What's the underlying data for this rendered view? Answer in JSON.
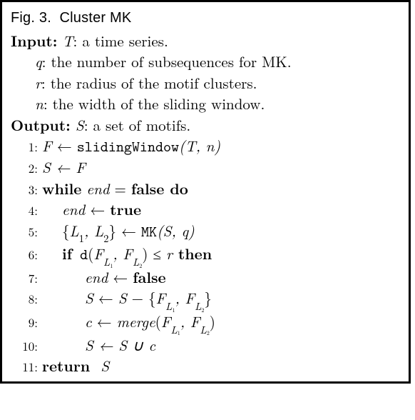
{
  "caption_prefix": "Fig. 3.",
  "caption_title": "Cluster MK",
  "input_label": "Input:",
  "output_label": "Output:",
  "input_items": [
    {
      "var": "T",
      "desc": ": a time series."
    },
    {
      "var": "q",
      "desc": ": the number of subsequences for MK."
    },
    {
      "var": "r",
      "desc": ": the radius of the motif clusters."
    },
    {
      "var": "n",
      "desc": ": the width of the sliding window."
    }
  ],
  "output_item": {
    "var": "S",
    "desc": ": a set of motifs."
  },
  "lines": {
    "l1_lhs": "F",
    "l1_arrow": " ← ",
    "l1_fn": "slidingWindow",
    "l1_args": "(T, n)",
    "l2": "S ← F",
    "l3_while": "while",
    "l3_cond_var": "end",
    "l3_eq": " = ",
    "l3_false": "false",
    "l3_do": " do",
    "l4_var": "end",
    "l4_arrow": " ← ",
    "l4_true": "true",
    "l5_lhs_open": "{",
    "l5_L1": "L",
    "l5_sub1": "1",
    "l5_comma": ", ",
    "l5_L2": "L",
    "l5_sub2": "2",
    "l5_close": "}",
    "l5_arrow": " ← ",
    "l5_fn": "MK",
    "l5_args": "(S, q)",
    "l6_if": "if",
    "l6_d": " d",
    "l6_open": "(",
    "l6_F1": "F",
    "l6_Lsub1": "L",
    "l6_subsub1": "1",
    "l6_comma": ", ",
    "l6_F2": "F",
    "l6_Lsub2": "L",
    "l6_subsub2": "2",
    "l6_close": ")",
    "l6_leq": " ≤ ",
    "l6_r": "r",
    "l6_then": " then",
    "l7_var": "end",
    "l7_arrow": " ← ",
    "l7_false": "false",
    "l8_S": "S",
    "l8_arrow": " ← ",
    "l8_S2": "S",
    "l8_minus": " − {",
    "l8_F1": "F",
    "l8_L1": "L",
    "l8_s1": "1",
    "l8_comma": ", ",
    "l8_F2": "F",
    "l8_L2": "L",
    "l8_s2": "2",
    "l8_close": "}",
    "l9_c": "c",
    "l9_arrow": " ← ",
    "l9_merge": "merge",
    "l9_open": "(",
    "l9_F1": "F",
    "l9_L1": "L",
    "l9_s1": "1",
    "l9_comma": ", ",
    "l9_F2": "F",
    "l9_L2": "L",
    "l9_s2": "2",
    "l9_close": ")",
    "l10": "S ← S ∪ c",
    "l11_return": "return",
    "l11_S": "  S"
  },
  "linenos": [
    "1:",
    "2:",
    "3:",
    "4:",
    "5:",
    "6:",
    "7:",
    "8:",
    "9:",
    "10:",
    "11:"
  ],
  "colors": {
    "border": "#000000",
    "background": "#ffffff",
    "text": "#000000"
  }
}
